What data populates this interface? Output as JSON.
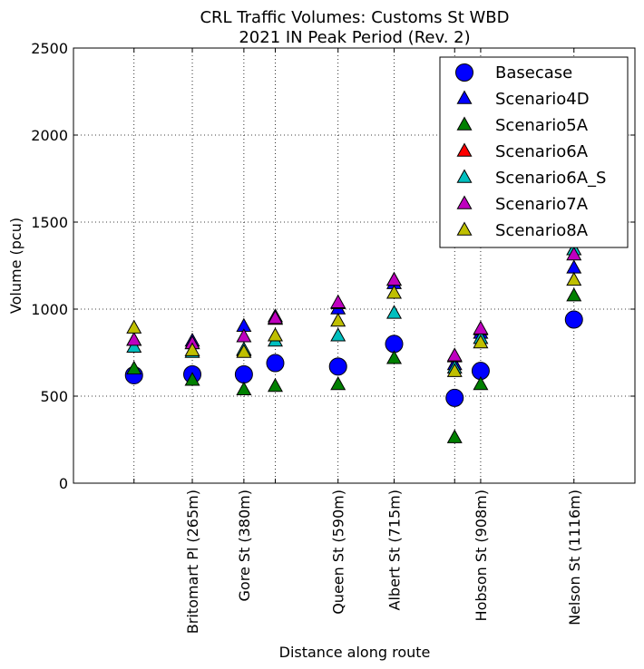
{
  "chart_data": {
    "type": "scatter",
    "title_line1": "CRL Traffic Volumes: Customs St WBD",
    "title_line2": "2021 IN Peak Period (Rev. 2)",
    "xlabel": "Distance along route",
    "ylabel": "Volume (pcu)",
    "xlim": [
      0,
      1252
    ],
    "ylim": [
      0,
      2500
    ],
    "yticks": [
      0,
      500,
      1000,
      1500,
      2000,
      2500
    ],
    "grid": true,
    "legend_position": "top-right",
    "x": [
      135,
      265,
      380,
      450,
      590,
      715,
      850,
      908,
      1116
    ],
    "xtick_positions": [
      135,
      265,
      380,
      450,
      590,
      715,
      850,
      908,
      1116
    ],
    "xtick_labels": [
      "",
      "Britomart Pl (265m)",
      "Gore St (380m)",
      "",
      "Queen St (590m)",
      "Albert St (715m)",
      "",
      "Hobson St (908m)",
      "Nelson St (1116m)"
    ],
    "series": [
      {
        "name": "Basecase",
        "marker": "circle",
        "color": "#0000ff",
        "values": [
          620,
          625,
          625,
          690,
          670,
          800,
          490,
          645,
          940
        ]
      },
      {
        "name": "Scenario4D",
        "marker": "triangle",
        "color": "#0000ff",
        "values": [
          820,
          815,
          900,
          955,
          1000,
          1145,
          680,
          860,
          1235
        ]
      },
      {
        "name": "Scenario5A",
        "marker": "triangle",
        "color": "#008000",
        "values": [
          655,
          590,
          535,
          555,
          565,
          715,
          260,
          565,
          1075
        ]
      },
      {
        "name": "Scenario6A",
        "marker": "triangle",
        "color": "#ff0000",
        "values": [
          820,
          800,
          760,
          940,
          1030,
          1165,
          725,
          880,
          1340
        ]
      },
      {
        "name": "Scenario6A_S",
        "marker": "triangle",
        "color": "#00bfbf",
        "values": [
          780,
          750,
          765,
          815,
          845,
          975,
          660,
          830,
          1340
        ]
      },
      {
        "name": "Scenario7A",
        "marker": "triangle",
        "color": "#bf00bf",
        "values": [
          820,
          800,
          840,
          945,
          1035,
          1165,
          730,
          885,
          1310
        ]
      },
      {
        "name": "Scenario8A",
        "marker": "triangle",
        "color": "#bfbf00",
        "values": [
          890,
          760,
          750,
          845,
          930,
          1090,
          640,
          805,
          1165
        ]
      }
    ]
  }
}
